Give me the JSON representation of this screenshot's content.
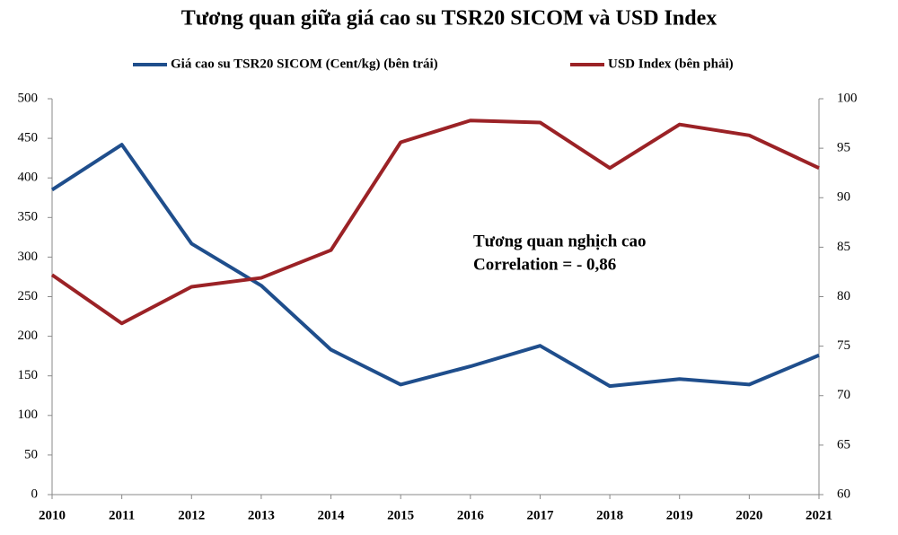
{
  "chart_data": {
    "type": "line",
    "title": "Tương quan giữa giá cao su TSR20 SICOM và USD Index",
    "x": [
      2010,
      2011,
      2012,
      2013,
      2014,
      2015,
      2016,
      2017,
      2018,
      2019,
      2020,
      2021
    ],
    "xlim": [
      2010,
      2021
    ],
    "xticks": [
      2010,
      2011,
      2012,
      2013,
      2014,
      2015,
      2016,
      2017,
      2018,
      2019,
      2020,
      2021
    ],
    "series": [
      {
        "name": "Giá cao su TSR20 SICOM (Cent/kg) (bên trái)",
        "color": "#1f4e8c",
        "values": [
          385,
          442,
          317,
          264,
          183,
          139,
          162,
          188,
          137,
          146,
          139,
          176
        ]
      },
      {
        "name": "USD Index  (bên phải)",
        "color": "#9b2226",
        "axis": "y2",
        "values": [
          82.2,
          77.3,
          81.0,
          81.9,
          84.7,
          95.6,
          97.8,
          97.6,
          93.0,
          97.4,
          96.3,
          93.0
        ]
      }
    ],
    "ylim": [
      0,
      500
    ],
    "yticks": [
      0,
      50,
      100,
      150,
      200,
      250,
      300,
      350,
      400,
      450,
      500
    ],
    "y2lim": [
      60,
      100
    ],
    "y2ticks": [
      60,
      65,
      70,
      75,
      80,
      85,
      90,
      95,
      100
    ],
    "annotations": [
      "Tương quan nghịch cao",
      "Correlation = - 0,86"
    ],
    "legend": "top"
  }
}
